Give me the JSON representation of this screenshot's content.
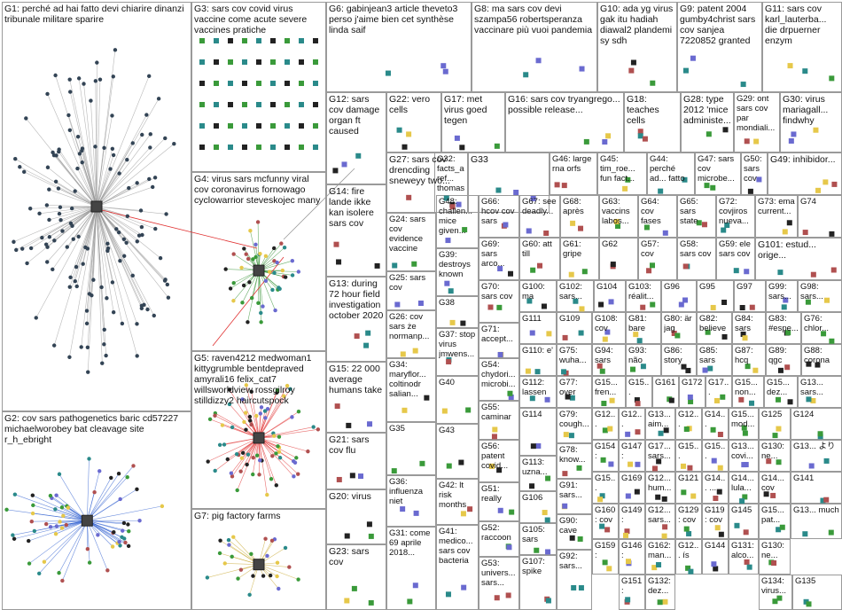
{
  "colors": {
    "background": "#ffffff",
    "box_border": "#9a9a9a",
    "edge_grey": "#9a9a9a",
    "edge_red": "#e03030",
    "edge_green": "#2f8f2f",
    "edge_blue": "#2f5fd0",
    "node_green": "#3a9a3a",
    "node_teal": "#2a8a8a",
    "node_yellow": "#e6c84a",
    "node_black": "#222222"
  },
  "groups": [
    {
      "id": "G1",
      "label": "G1: perché ad hai fatto devi chiarire dinanzi tribunale militare sparire"
    },
    {
      "id": "G2",
      "label": "G2: cov sars pathogenetics baric cd57227 michaelworobey bat cleavage site r_h_ebright"
    },
    {
      "id": "G3",
      "label": "G3: sars cov covid virus vaccine come acute severe vaccines pratiche"
    },
    {
      "id": "G4",
      "label": "G4: virus sars mcfunny viral cov coronavirus fornowago cyclowarrior steveskojec many"
    },
    {
      "id": "G5",
      "label": "G5: raven4212 medwoman1 kittygrumble bentdepraved amyrali16 felix_cat7 willsworldview rossgilroy stilldizzy2 haircutspock"
    },
    {
      "id": "G6",
      "label": "G6: gabinjean3 article theveto3 perso j'aime bien cet synthèse linda saif"
    },
    {
      "id": "G7",
      "label": "G7: pig factory farms"
    },
    {
      "id": "G8",
      "label": "G8: ma sars cov devi szampa56 robertsperanza vaccinare più vuoi pandemia"
    },
    {
      "id": "G9",
      "label": "G9: patent 2004 gumby4christ sars cov sanjea 7220852 granted 12 apr"
    },
    {
      "id": "G10",
      "label": "G10: ada yg virus gak itu hadiah diawal2 plandemi sy sdh"
    },
    {
      "id": "G11",
      "label": "G11: sars cov karl_lauterba... die drpuerner enzym medikament warum verwendung"
    },
    {
      "id": "G12",
      "label": "G12: sars cov damage organ ft caused cardiovasc... cause known"
    },
    {
      "id": "G13",
      "label": "G13: during 72 hour field investigation october 2020 huilai ma director"
    },
    {
      "id": "G14",
      "label": "G14: fire lande ikke kan isolere sars cov england danmark canada"
    },
    {
      "id": "G15",
      "label": "G15: 22 000 average humans take breath day means..."
    },
    {
      "id": "G16",
      "label": "G16: sars cov tryangrego... possible release..."
    },
    {
      "id": "G17",
      "label": "G17: met virus goed tegen"
    },
    {
      "id": "G18",
      "label": "G18: teaches cells replicate..."
    },
    {
      "id": "G20",
      "label": "G20: virus"
    },
    {
      "id": "G21",
      "label": "G21: sars cov flu"
    },
    {
      "id": "G22",
      "label": "G22: vero cells"
    },
    {
      "id": "G23",
      "label": "G23: sars cov"
    },
    {
      "id": "G24",
      "label": "G24: sars cov evidence vaccine given bug"
    },
    {
      "id": "G25",
      "label": "G25: sars cov mudre..."
    },
    {
      "id": "G26",
      "label": "G26: cov sars że normanp... tak ci wszystki..."
    },
    {
      "id": "G27",
      "label": "G27: sars cov drencding sneweyy two..."
    },
    {
      "id": "G28",
      "label": "G28: type 2012 'mice administe... trad'l..."
    },
    {
      "id": "G29",
      "label": "G29: ont sars cov par mondiali..."
    },
    {
      "id": "G30",
      "label": "G30: virus mariagall... findwhy fitterhapp..."
    },
    {
      "id": "G31",
      "label": "G31: come 69 aprile 2018..."
    },
    {
      "id": "G32",
      "label": "G32: facts_aref... thomas19..."
    },
    {
      "id": "G33",
      "label": "G33"
    },
    {
      "id": "G34",
      "label": "G34: maryflor... coltinodr salian..."
    },
    {
      "id": "G35",
      "label": "G35"
    },
    {
      "id": "G36",
      "label": "G36: influenza niet"
    },
    {
      "id": "G37",
      "label": "G37: stop virus jmwens..."
    },
    {
      "id": "G38",
      "label": "G38"
    },
    {
      "id": "G39",
      "label": "G39: destroys known viruses..."
    },
    {
      "id": "G40",
      "label": "G40"
    },
    {
      "id": "G41",
      "label": "G41: medico... sars cov bacteria"
    },
    {
      "id": "G42",
      "label": "G42: lt risk months angryst..."
    },
    {
      "id": "G43",
      "label": "G43"
    },
    {
      "id": "G44",
      "label": "G44: perché ad... fatto"
    },
    {
      "id": "G45",
      "label": "G45: tim_roe... fun fact..."
    },
    {
      "id": "G46",
      "label": "G46: large rna orfs"
    },
    {
      "id": "G47",
      "label": "G47: sars cov microbe..."
    },
    {
      "id": "G48",
      "label": "G48: challen... mice given..."
    },
    {
      "id": "G49",
      "label": "G49: inhibidor..."
    },
    {
      "id": "G50",
      "label": "G50: sars cov backwo..."
    },
    {
      "id": "G51",
      "label": "G51: really cov..."
    },
    {
      "id": "G52",
      "label": "G52: raccoon dogs..."
    },
    {
      "id": "G53",
      "label": "G53: univers... sars..."
    },
    {
      "id": "G54",
      "label": "G54: chydori... microbi..."
    },
    {
      "id": "G55",
      "label": "G55: caminar rápido..."
    },
    {
      "id": "G56",
      "label": "G56: patent covid..."
    },
    {
      "id": "G57",
      "label": "G57: cov"
    },
    {
      "id": "G58",
      "label": "G58: sars cov"
    },
    {
      "id": "G59",
      "label": "G59: ele sars cov"
    },
    {
      "id": "G60",
      "label": "G60: att till"
    },
    {
      "id": "G61",
      "label": "G61: gripe"
    },
    {
      "id": "G62",
      "label": "G62"
    },
    {
      "id": "G63",
      "label": "G63: vaccins labos..."
    },
    {
      "id": "G64",
      "label": "G64: cov fases"
    },
    {
      "id": "G65",
      "label": "G65: sars state"
    },
    {
      "id": "G66",
      "label": "G66: hcov cov sars"
    },
    {
      "id": "G67",
      "label": "G67: see deadly..."
    },
    {
      "id": "G68",
      "label": "G68: après"
    },
    {
      "id": "G69",
      "label": "G69: sars arco..."
    },
    {
      "id": "G70",
      "label": "G70: sars cov"
    },
    {
      "id": "G71",
      "label": "G71: accept... embo..."
    },
    {
      "id": "G72",
      "label": "G72: covjiros nueva..."
    },
    {
      "id": "G73",
      "label": "G73: ema current..."
    },
    {
      "id": "G74",
      "label": "G74"
    },
    {
      "id": "G75",
      "label": "G75: wuha..."
    },
    {
      "id": "G76",
      "label": "G76: chlor... 2005"
    },
    {
      "id": "G77",
      "label": "G77: over"
    },
    {
      "id": "G78",
      "label": "G78: know..."
    },
    {
      "id": "G79",
      "label": "G79: cough..."
    },
    {
      "id": "G80",
      "label": "G80: är jag det..."
    },
    {
      "id": "G81",
      "label": "G81: bare simpl..."
    },
    {
      "id": "G82",
      "label": "G82: believe cov"
    },
    {
      "id": "G83",
      "label": "G83: #espe... desar..."
    },
    {
      "id": "G84",
      "label": "G84: sars cov"
    },
    {
      "id": "G85",
      "label": "G85: sars cov"
    },
    {
      "id": "G86",
      "label": "G86: story #cov..."
    },
    {
      "id": "G87",
      "label": "G87: hcq"
    },
    {
      "id": "G88",
      "label": "G88: corona virus"
    },
    {
      "id": "G89",
      "label": "G89: qgc sars"
    },
    {
      "id": "G90",
      "label": "G90: cave sars..."
    },
    {
      "id": "G91",
      "label": "G91: sars..."
    },
    {
      "id": "G92",
      "label": "G92: sars..."
    },
    {
      "id": "G93",
      "label": "G93: não recome..."
    },
    {
      "id": "G94",
      "label": "G94: sars preval..."
    },
    {
      "id": "G95",
      "label": "G95"
    },
    {
      "id": "G96",
      "label": "G96"
    },
    {
      "id": "G97",
      "label": "G97"
    },
    {
      "id": "G98",
      "label": "G98: sars..."
    },
    {
      "id": "G99",
      "label": "G99: sars..."
    },
    {
      "id": "G100",
      "label": "G100: ma"
    },
    {
      "id": "G101",
      "label": "G101: estud... orige..."
    },
    {
      "id": "G102",
      "label": "G102: sars..."
    },
    {
      "id": "G103",
      "label": "G103: réalit..."
    },
    {
      "id": "G104",
      "label": "G104"
    },
    {
      "id": "G105",
      "label": "G105: sars"
    },
    {
      "id": "G106",
      "label": "G106"
    },
    {
      "id": "G107",
      "label": "G107: spike"
    },
    {
      "id": "G108",
      "label": "G108: cov"
    },
    {
      "id": "G109",
      "label": "G109"
    },
    {
      "id": "G110",
      "label": "G110: e'"
    },
    {
      "id": "G111",
      "label": "G111"
    },
    {
      "id": "G112",
      "label": "G112: lassen"
    },
    {
      "id": "G113",
      "label": "G113: uzna..."
    },
    {
      "id": "G114",
      "label": "G114"
    },
    {
      "id": "G115",
      "label": "G15... fren..."
    },
    {
      "id": "G116",
      "label": "G15... gaia..."
    },
    {
      "id": "G117",
      "label": "G15... dez..."
    },
    {
      "id": "G118",
      "label": "G17... blon..."
    },
    {
      "id": "G119",
      "label": "G119: cov"
    },
    {
      "id": "G120",
      "label": "G12... sars..."
    },
    {
      "id": "G121",
      "label": "G121"
    },
    {
      "id": "G122",
      "label": "G12... hum..."
    },
    {
      "id": "G123",
      "label": "G12... ís"
    },
    {
      "id": "G124",
      "label": "G124"
    },
    {
      "id": "G125",
      "label": "G125"
    },
    {
      "id": "G126",
      "label": "G12... sars..."
    },
    {
      "id": "G127",
      "label": "G12... cxo..."
    },
    {
      "id": "G128",
      "label": "G12... efeito"
    },
    {
      "id": "G129",
      "label": "G129: cov"
    },
    {
      "id": "G130",
      "label": "G130: ne..."
    },
    {
      "id": "G131",
      "label": "G131: alco..."
    },
    {
      "id": "G132",
      "label": "G132: dez..."
    },
    {
      "id": "G133",
      "label": "G13... より"
    },
    {
      "id": "G134",
      "label": "G134: virus..."
    },
    {
      "id": "G135",
      "label": "G135"
    },
    {
      "id": "G136",
      "label": "G13... sars..."
    },
    {
      "id": "G137",
      "label": "G13... much"
    },
    {
      "id": "G138",
      "label": "G13... aim..."
    },
    {
      "id": "G139",
      "label": "G13... covi..."
    },
    {
      "id": "G140",
      "label": "G14... lula..."
    },
    {
      "id": "G141",
      "label": "G141"
    },
    {
      "id": "G142",
      "label": "G14... ..."
    },
    {
      "id": "G143",
      "label": "G14... cov"
    },
    {
      "id": "G144",
      "label": "G144"
    },
    {
      "id": "G145",
      "label": "G145"
    },
    {
      "id": "G146",
      "label": "G146: man..."
    },
    {
      "id": "G147",
      "label": "G147: sars..."
    },
    {
      "id": "G148",
      "label": "G14... sars..."
    },
    {
      "id": "G149",
      "label": "G149: help..."
    },
    {
      "id": "G150",
      "label": "G15... non..."
    },
    {
      "id": "G151",
      "label": "G151: mar..."
    },
    {
      "id": "G152",
      "label": "G15... chlo..."
    },
    {
      "id": "G153",
      "label": "G15... pate..."
    },
    {
      "id": "G154",
      "label": "G154: sars..."
    },
    {
      "id": "G155",
      "label": "G15... pat..."
    },
    {
      "id": "G156",
      "label": "G15... mod..."
    },
    {
      "id": "G157",
      "label": "G17... sars..."
    },
    {
      "id": "G158",
      "label": "G15... sars..."
    },
    {
      "id": "G159",
      "label": "G159: sars..."
    },
    {
      "id": "G160",
      "label": "G160: cov"
    },
    {
      "id": "G161",
      "label": "G161"
    },
    {
      "id": "G162",
      "label": "G162: man..."
    },
    {
      "id": "G169",
      "label": "G169"
    },
    {
      "id": "G172",
      "label": "G172"
    }
  ]
}
